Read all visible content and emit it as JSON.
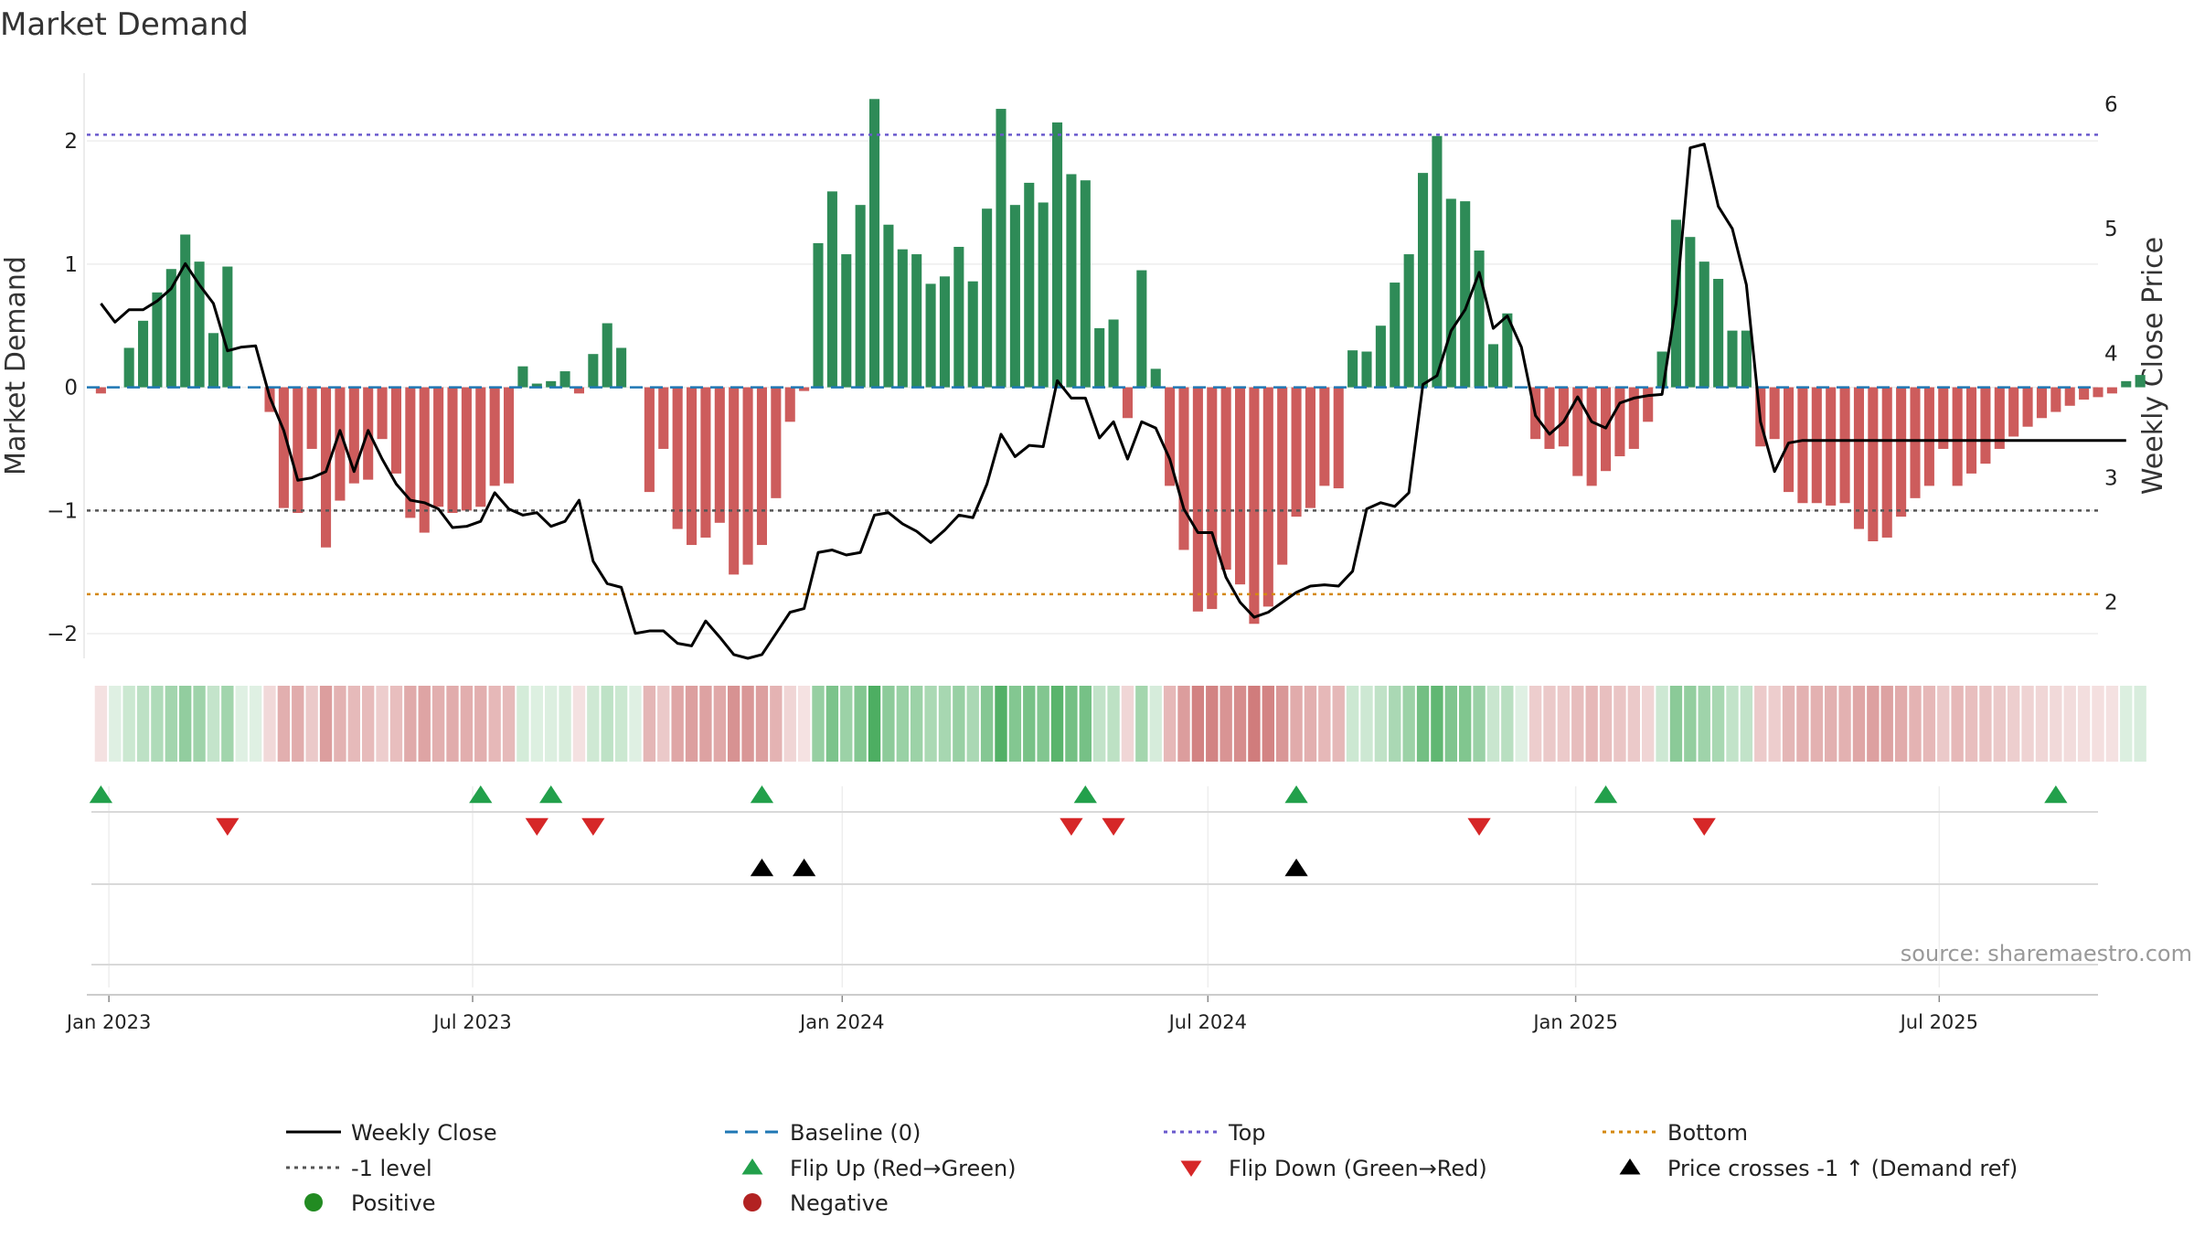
{
  "chart_data": {
    "type": "bar",
    "title": "Market Demand",
    "ylabel": "Market Demand",
    "y2label": "Weekly Close Price",
    "ylim": [
      -2.2,
      2.55
    ],
    "y2lim": [
      1.55,
      6.25
    ],
    "yticks": [
      "2",
      "1",
      "0",
      "−1",
      "−2"
    ],
    "yticks_values": [
      2,
      1,
      0,
      -1,
      -2
    ],
    "y2ticks": [
      "6",
      "5",
      "4",
      "3",
      "2"
    ],
    "y2ticks_values": [
      6,
      5,
      4,
      3,
      2
    ],
    "x_range_weeks": [
      -1,
      142
    ],
    "xticks": [
      {
        "label": "Jan 2023",
        "week": 0.57
      },
      {
        "label": "Jul 2023",
        "week": 26.43
      },
      {
        "label": "Jan 2024",
        "week": 52.71
      },
      {
        "label": "Jul 2024",
        "week": 78.71
      },
      {
        "label": "Jan 2025",
        "week": 104.86
      },
      {
        "label": "Jul 2025",
        "week": 130.71
      }
    ],
    "reference_lines": {
      "top": 2.05,
      "bottom": -1.68,
      "minus_one": -1.0,
      "baseline": 0
    },
    "demand": [
      -0.05,
      0.0,
      0.32,
      0.54,
      0.77,
      0.96,
      1.24,
      1.02,
      0.44,
      0.98,
      0.0,
      0.0,
      -0.2,
      -0.98,
      -1.02,
      -0.5,
      -1.3,
      -0.92,
      -0.78,
      -0.75,
      -0.42,
      -0.7,
      -1.06,
      -1.18,
      -0.97,
      -1.02,
      -1.0,
      -0.97,
      -0.8,
      -0.78,
      0.17,
      0.03,
      0.05,
      0.13,
      -0.05,
      0.27,
      0.52,
      0.32,
      0.0,
      -0.85,
      -0.5,
      -1.15,
      -1.28,
      -1.22,
      -1.1,
      -1.52,
      -1.44,
      -1.28,
      -0.9,
      -0.28,
      -0.03,
      1.17,
      1.59,
      1.08,
      1.48,
      2.34,
      1.32,
      1.12,
      1.08,
      0.84,
      0.9,
      1.14,
      0.86,
      1.45,
      2.26,
      1.48,
      1.66,
      1.5,
      2.15,
      1.73,
      1.68,
      0.48,
      0.55,
      -0.25,
      0.95,
      0.15,
      -0.8,
      -1.32,
      -1.82,
      -1.8,
      -1.48,
      -1.6,
      -1.92,
      -1.78,
      -1.44,
      -1.05,
      -0.98,
      -0.8,
      -0.82,
      0.3,
      0.29,
      0.5,
      0.85,
      1.08,
      1.74,
      2.04,
      1.53,
      1.51,
      1.11,
      0.35,
      0.6,
      0.0,
      -0.42,
      -0.5,
      -0.48,
      -0.72,
      -0.8,
      -0.68,
      -0.56,
      -0.5,
      -0.28,
      0.29,
      1.36,
      1.22,
      1.02,
      0.88,
      0.46,
      0.46,
      -0.48,
      -0.42,
      -0.85,
      -0.94,
      -0.94,
      -0.96,
      -0.94,
      -1.15,
      -1.25,
      -1.22,
      -1.05,
      -0.9,
      -0.8,
      -0.5,
      -0.8,
      -0.7,
      -0.62,
      -0.5,
      -0.4,
      -0.32,
      -0.25,
      -0.2,
      -0.15,
      -0.1,
      -0.08,
      -0.05,
      0.05,
      0.1
    ],
    "weekly_close": [
      4.4,
      4.25,
      4.35,
      4.35,
      4.42,
      4.52,
      4.72,
      4.55,
      4.4,
      4.02,
      4.05,
      4.06,
      3.65,
      3.38,
      2.98,
      3.0,
      3.05,
      3.38,
      3.05,
      3.38,
      3.15,
      2.95,
      2.82,
      2.8,
      2.75,
      2.6,
      2.61,
      2.65,
      2.88,
      2.75,
      2.7,
      2.72,
      2.61,
      2.65,
      2.82,
      2.33,
      2.15,
      2.12,
      1.75,
      1.77,
      1.77,
      1.67,
      1.65,
      1.85,
      1.72,
      1.58,
      1.55,
      1.58,
      1.75,
      1.92,
      1.95,
      2.4,
      2.42,
      2.38,
      2.4,
      2.7,
      2.72,
      2.63,
      2.57,
      2.48,
      2.58,
      2.7,
      2.68,
      2.95,
      3.35,
      3.17,
      3.26,
      3.25,
      3.78,
      3.64,
      3.64,
      3.32,
      3.45,
      3.15,
      3.45,
      3.4,
      3.15,
      2.75,
      2.56,
      2.56,
      2.2,
      2.0,
      1.88,
      1.92,
      2.0,
      2.08,
      2.13,
      2.14,
      2.13,
      2.25,
      2.75,
      2.8,
      2.77,
      2.88,
      3.75,
      3.82,
      4.18,
      4.35,
      4.65,
      4.2,
      4.3,
      4.05,
      3.5,
      3.35,
      3.45,
      3.65,
      3.45,
      3.4,
      3.6,
      3.64,
      3.66,
      3.67,
      4.4,
      5.65,
      5.68,
      5.18,
      5.0,
      4.55,
      3.45,
      3.05,
      3.28,
      3.3,
      3.3,
      3.3,
      3.3,
      3.3,
      3.3,
      3.3,
      3.3,
      3.3,
      3.3,
      3.3,
      3.3,
      3.3,
      3.3,
      3.3,
      3.3,
      3.3,
      3.3,
      3.3,
      3.3,
      3.3,
      3.3,
      3.3,
      3.3
    ],
    "flip_up_weeks": [
      0,
      27,
      32,
      47,
      70,
      85,
      107,
      139
    ],
    "flip_down_weeks": [
      9,
      31,
      35,
      69,
      72,
      98,
      114
    ],
    "price_cross_weeks": [
      47,
      50,
      85
    ],
    "positive_markers": [],
    "negative_markers": [],
    "legend": [
      {
        "label": "Weekly Close",
        "type": "line-solid",
        "color": "#000000"
      },
      {
        "label": "Baseline (0)",
        "type": "line-dashed",
        "color": "#1f77b4"
      },
      {
        "label": "Top",
        "type": "line-dotted",
        "color": "#6a5acd"
      },
      {
        "label": "Bottom",
        "type": "line-dotted",
        "color": "#d4880f"
      },
      {
        "label": "-1 level",
        "type": "line-dotted",
        "color": "#555555"
      },
      {
        "label": "Flip Up (Red→Green)",
        "type": "triangle-up",
        "color": "#22a04b"
      },
      {
        "label": "Flip Down (Green→Red)",
        "type": "triangle-down",
        "color": "#d62728"
      },
      {
        "label": "Price crosses -1 ↑ (Demand ref)",
        "type": "triangle-up",
        "color": "#000000"
      },
      {
        "label": "Positive",
        "type": "circle",
        "color": "#228b22"
      },
      {
        "label": "Negative",
        "type": "circle",
        "color": "#b22222"
      }
    ],
    "source": "source: sharemaestro.com"
  },
  "colors": {
    "positive_bar": "#2e8b57",
    "negative_bar": "#cd5c5c",
    "price_line": "#000000",
    "top_line": "#6a5acd",
    "bottom_line": "#d4880f",
    "minus_one_line": "#555555",
    "baseline": "#1f77b4",
    "flip_up": "#22a04b",
    "flip_down": "#d62728",
    "cross": "#000000"
  }
}
